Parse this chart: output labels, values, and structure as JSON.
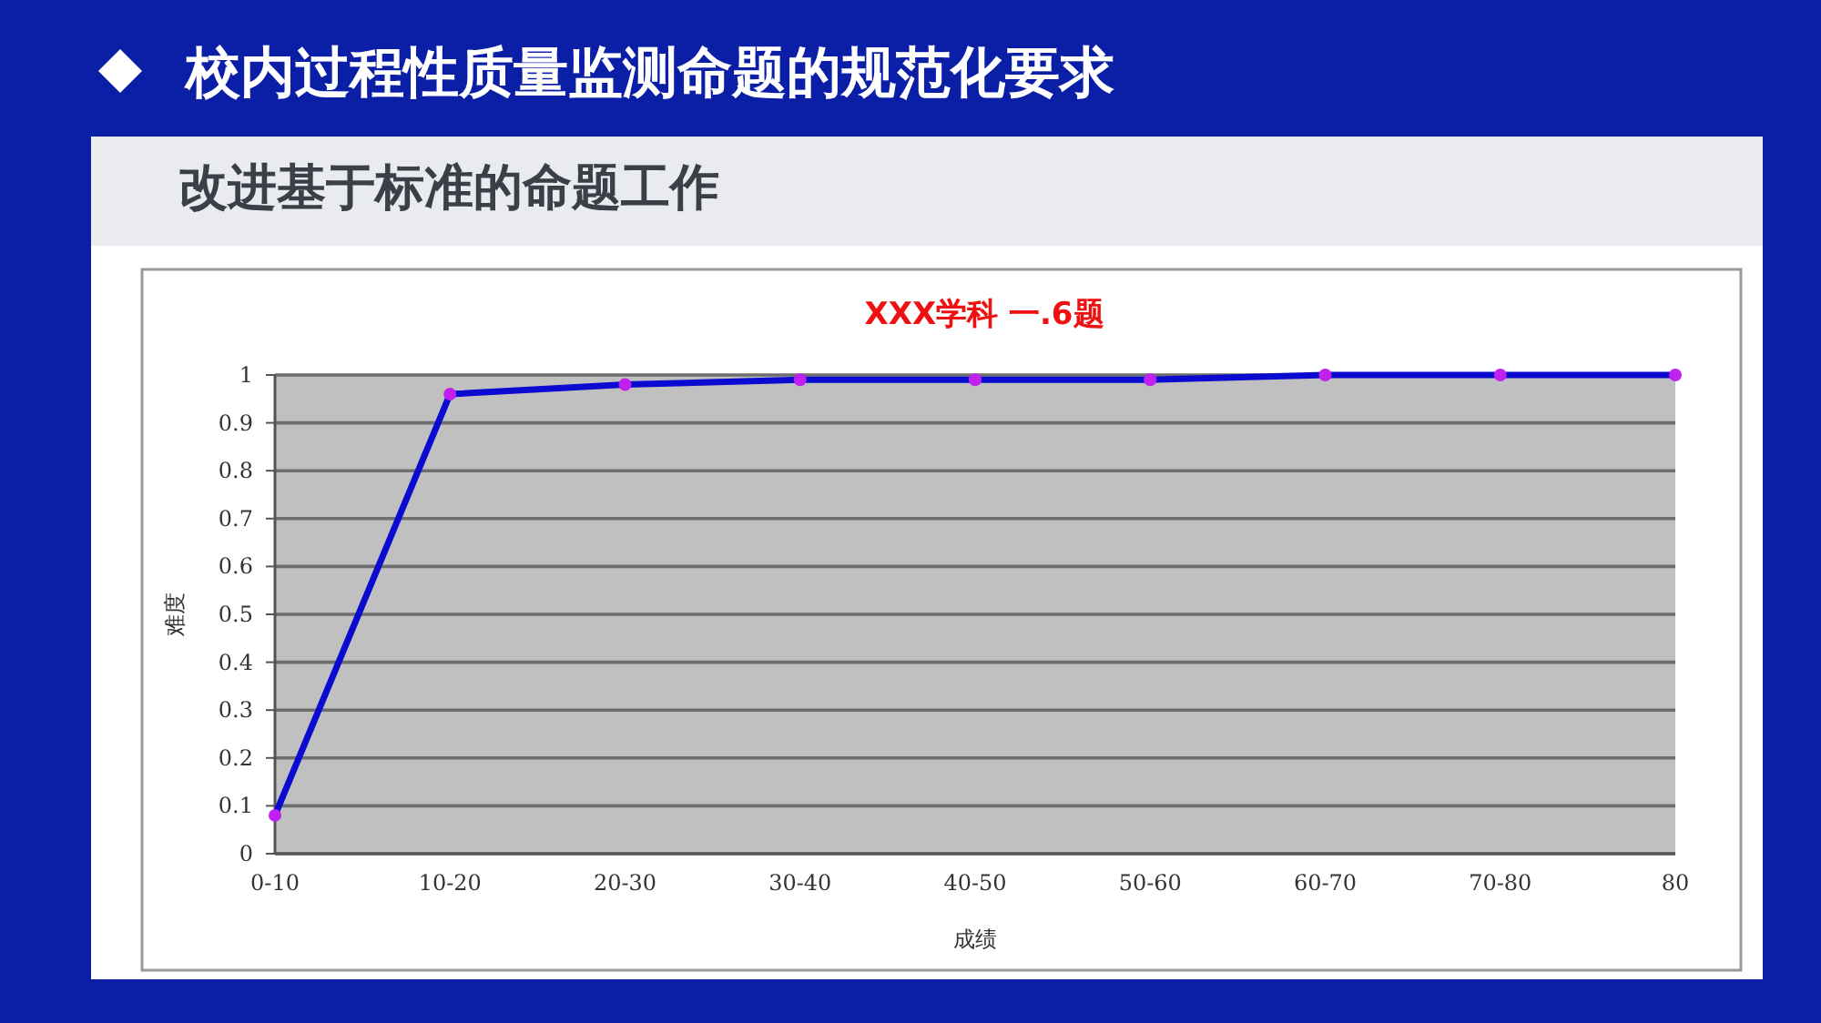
{
  "chart_data": {
    "type": "line",
    "title": "XXX学科 一.6题",
    "xlabel": "成绩",
    "ylabel": "难度",
    "annotations": [
      "校内过程性质量监测命题的规范化要求",
      "改进基于标准的命题工作"
    ],
    "categories": [
      "0-10",
      "10-20",
      "20-30",
      "30-40",
      "40-50",
      "50-60",
      "60-70",
      "70-80",
      "80"
    ],
    "series": [
      {
        "color": "#0a0ad0",
        "values": [
          0.08,
          0.96,
          0.98,
          0.99,
          0.99,
          0.99,
          1,
          1,
          1
        ]
      }
    ],
    "ylim": [
      0,
      1
    ],
    "yticks": [
      0,
      0.1,
      0.2,
      0.3,
      0.4,
      0.5,
      0.6,
      0.7,
      0.8,
      0.9,
      1
    ],
    "grid": "y",
    "marker": "circle",
    "line_style": "solid"
  }
}
